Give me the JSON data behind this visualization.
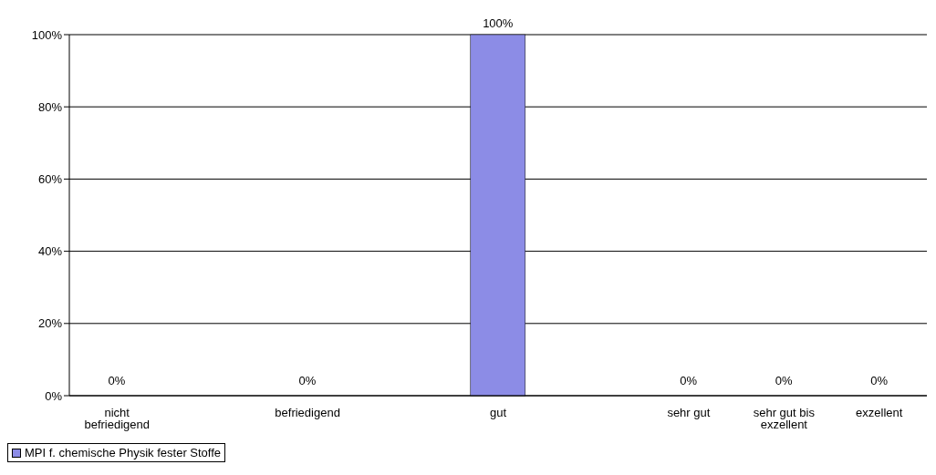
{
  "chart_data": {
    "type": "bar",
    "categories": [
      "nicht befriedigend",
      null,
      "befriedigend",
      null,
      "gut",
      null,
      "sehr gut",
      "sehr gut bis exzellent",
      "exzellent"
    ],
    "series": [
      {
        "name": "MPI f. chemische Physik fester Stoffe",
        "color": "#8c8ce6",
        "values": [
          0,
          null,
          0,
          null,
          100,
          null,
          0,
          0,
          0
        ],
        "value_labels": [
          "0%",
          null,
          "0%",
          null,
          "100%",
          null,
          "0%",
          "0%",
          "0%"
        ]
      }
    ],
    "ylim": [
      0,
      100
    ],
    "yticks": [
      {
        "value": 0,
        "label": "0%"
      },
      {
        "value": 20,
        "label": "20%"
      },
      {
        "value": 40,
        "label": "40%"
      },
      {
        "value": 60,
        "label": "60%"
      },
      {
        "value": 80,
        "label": "80%"
      },
      {
        "value": 100,
        "label": "100%"
      }
    ],
    "grid": "y",
    "legend": "bottom left"
  }
}
